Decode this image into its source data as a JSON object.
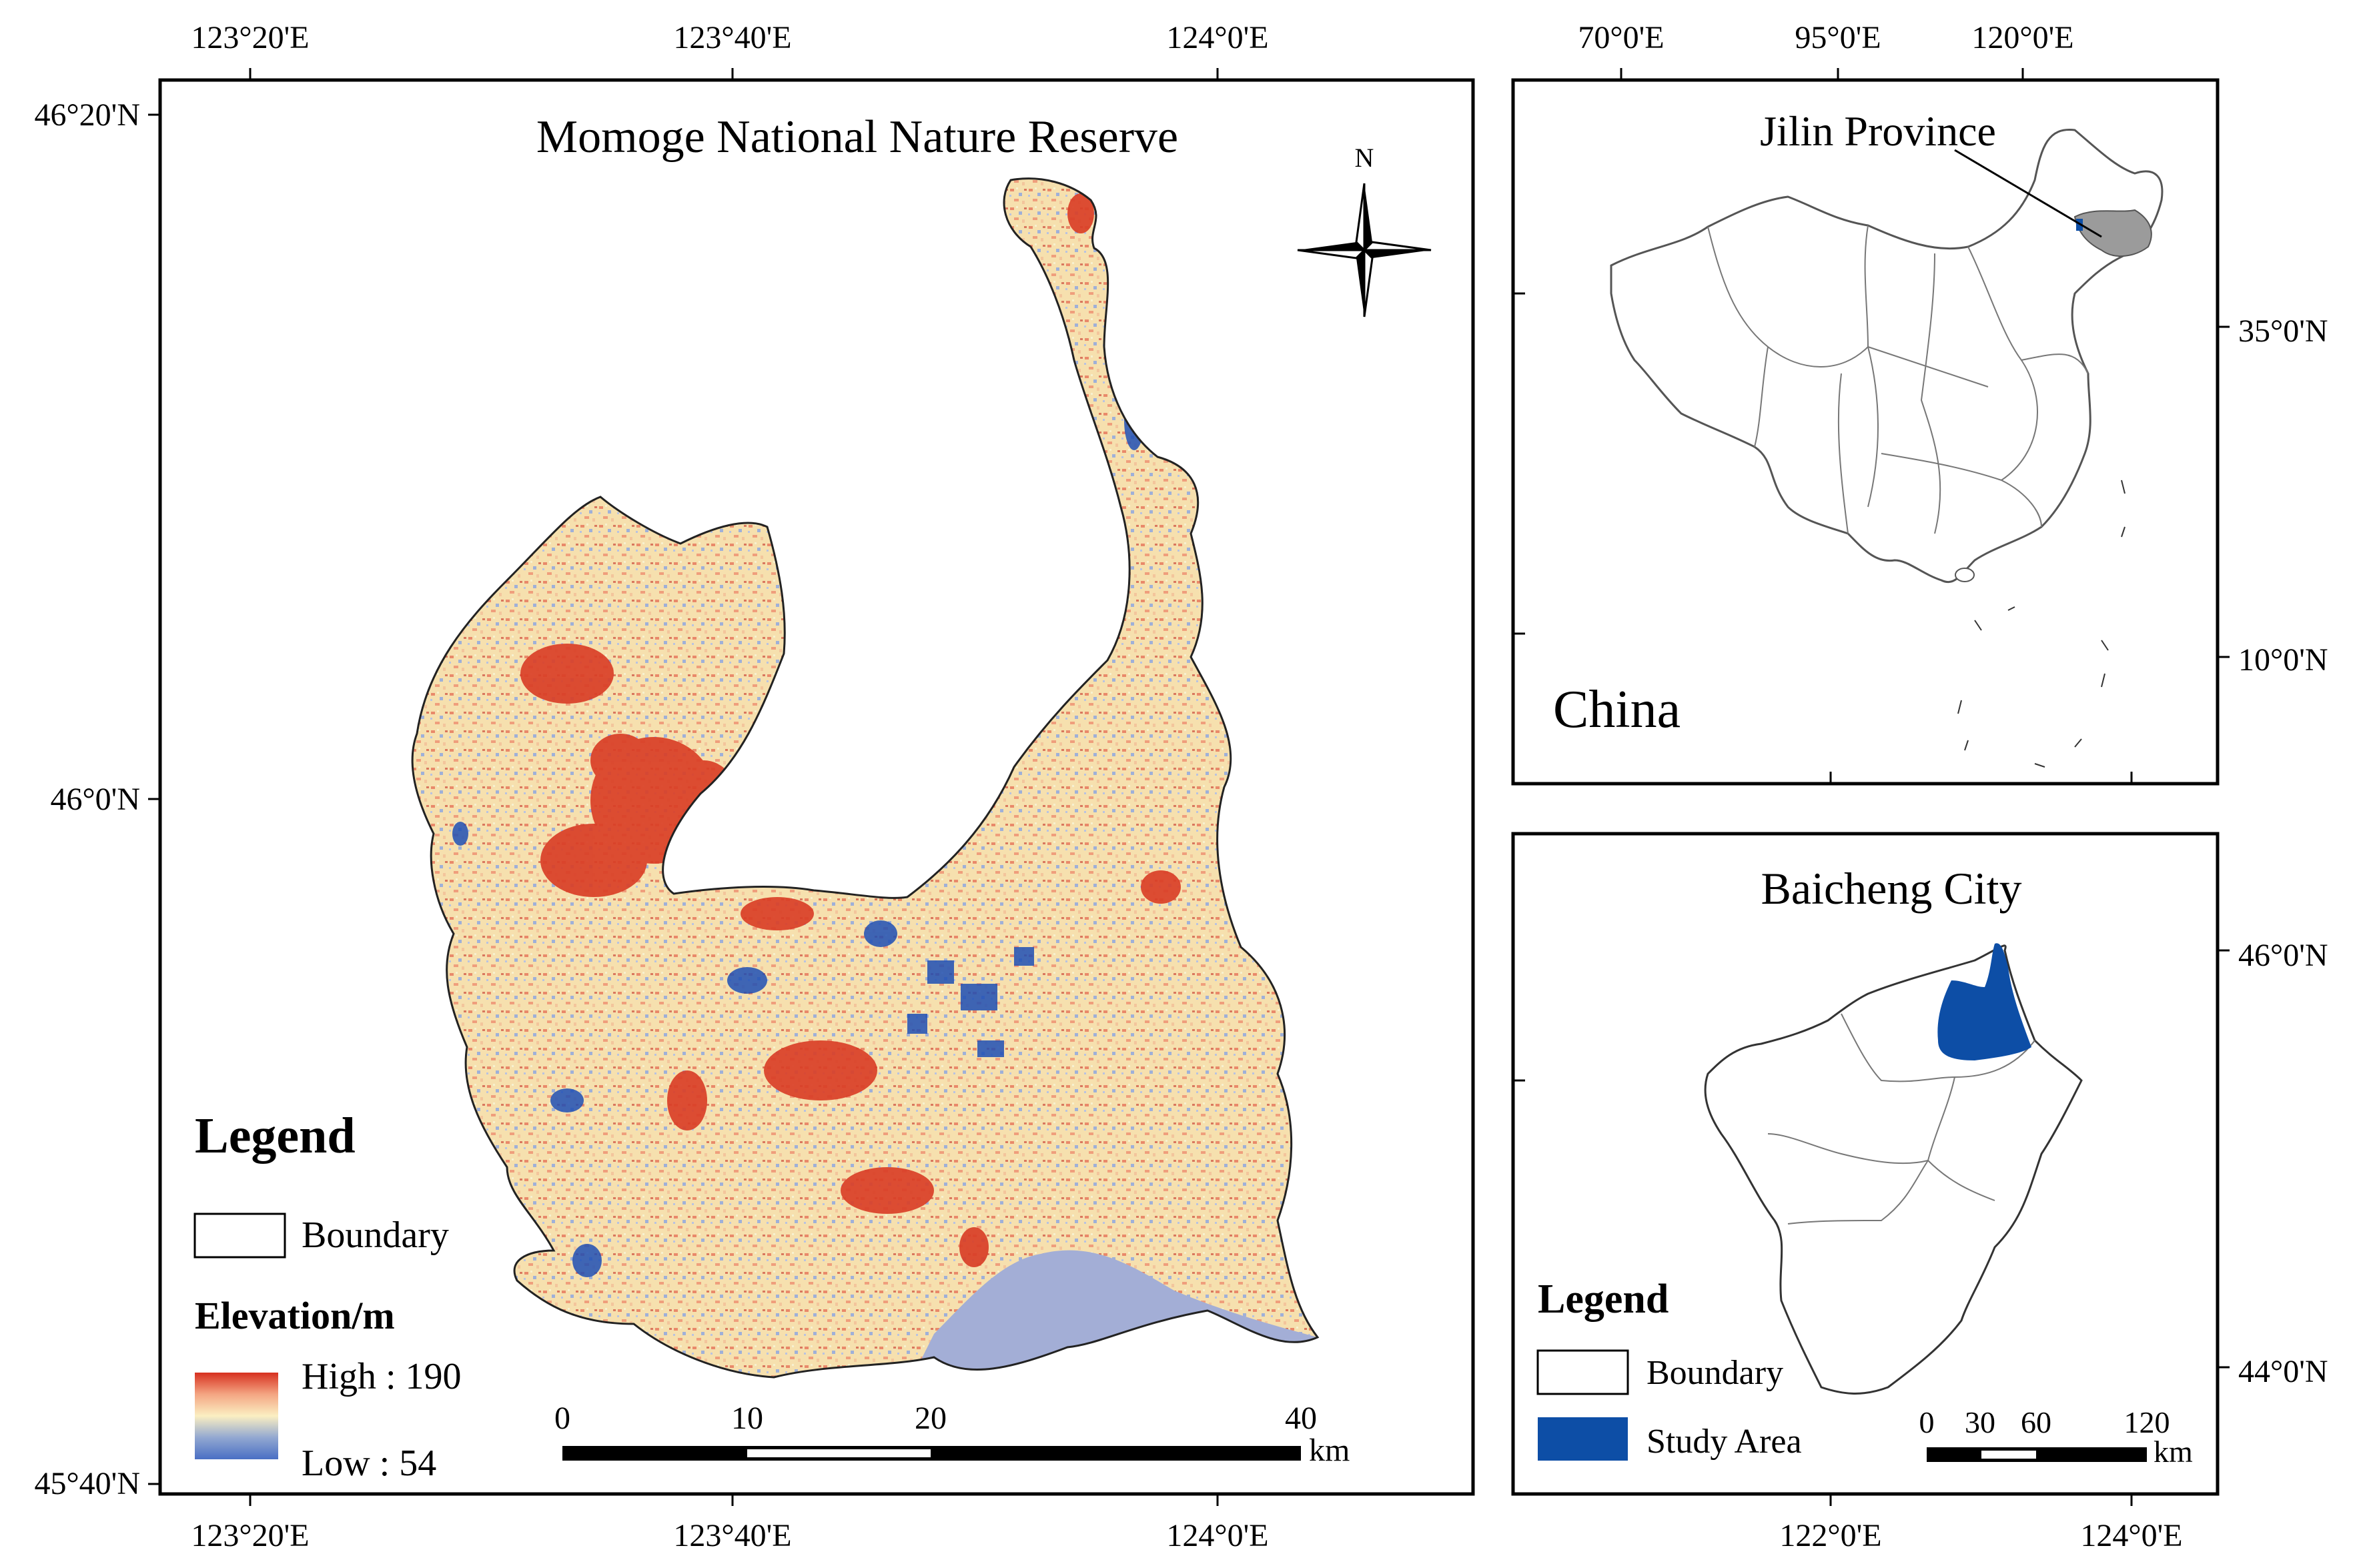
{
  "main_map": {
    "title": "Momoge National Nature Reserve",
    "top_lon_labels": [
      "123°20'E",
      "123°40'E",
      "124°0'E"
    ],
    "bottom_lon_labels": [
      "123°20'E",
      "123°40'E",
      "124°0'E"
    ],
    "lat_labels": [
      "46°20'N",
      "46°0'N",
      "45°40'N"
    ],
    "north_label": "N",
    "legend": {
      "title": "Legend",
      "boundary_label": "Boundary",
      "elevation_title": "Elevation/m",
      "high_label": "High : 190",
      "low_label": "Low : 54",
      "ramp_colors": [
        "#d7301f",
        "#f4a582",
        "#fbefc2",
        "#92a8d1",
        "#4a6fc4"
      ]
    },
    "scale_bar": {
      "ticks": [
        "0",
        "10",
        "20",
        "40"
      ],
      "unit": "km"
    }
  },
  "inset_china": {
    "top_lon_labels": [
      "70°0'E",
      "95°0'E",
      "120°0'E"
    ],
    "right_lat_labels": [
      "35°0'N",
      "10°0'N"
    ],
    "province_label": "Jilin Province",
    "country_label": "China"
  },
  "inset_baicheng": {
    "title": "Baicheng City",
    "right_lat_labels": [
      "46°0'N",
      "44°0'N"
    ],
    "bottom_lon_labels": [
      "122°0'E",
      "124°0'E"
    ],
    "legend": {
      "title": "Legend",
      "boundary_label": "Boundary",
      "study_area_label": "Study Area"
    },
    "scale_bar": {
      "ticks": [
        "0",
        "30",
        "60",
        "120"
      ],
      "unit": "km"
    },
    "study_area_color": "#0d4ea6"
  }
}
